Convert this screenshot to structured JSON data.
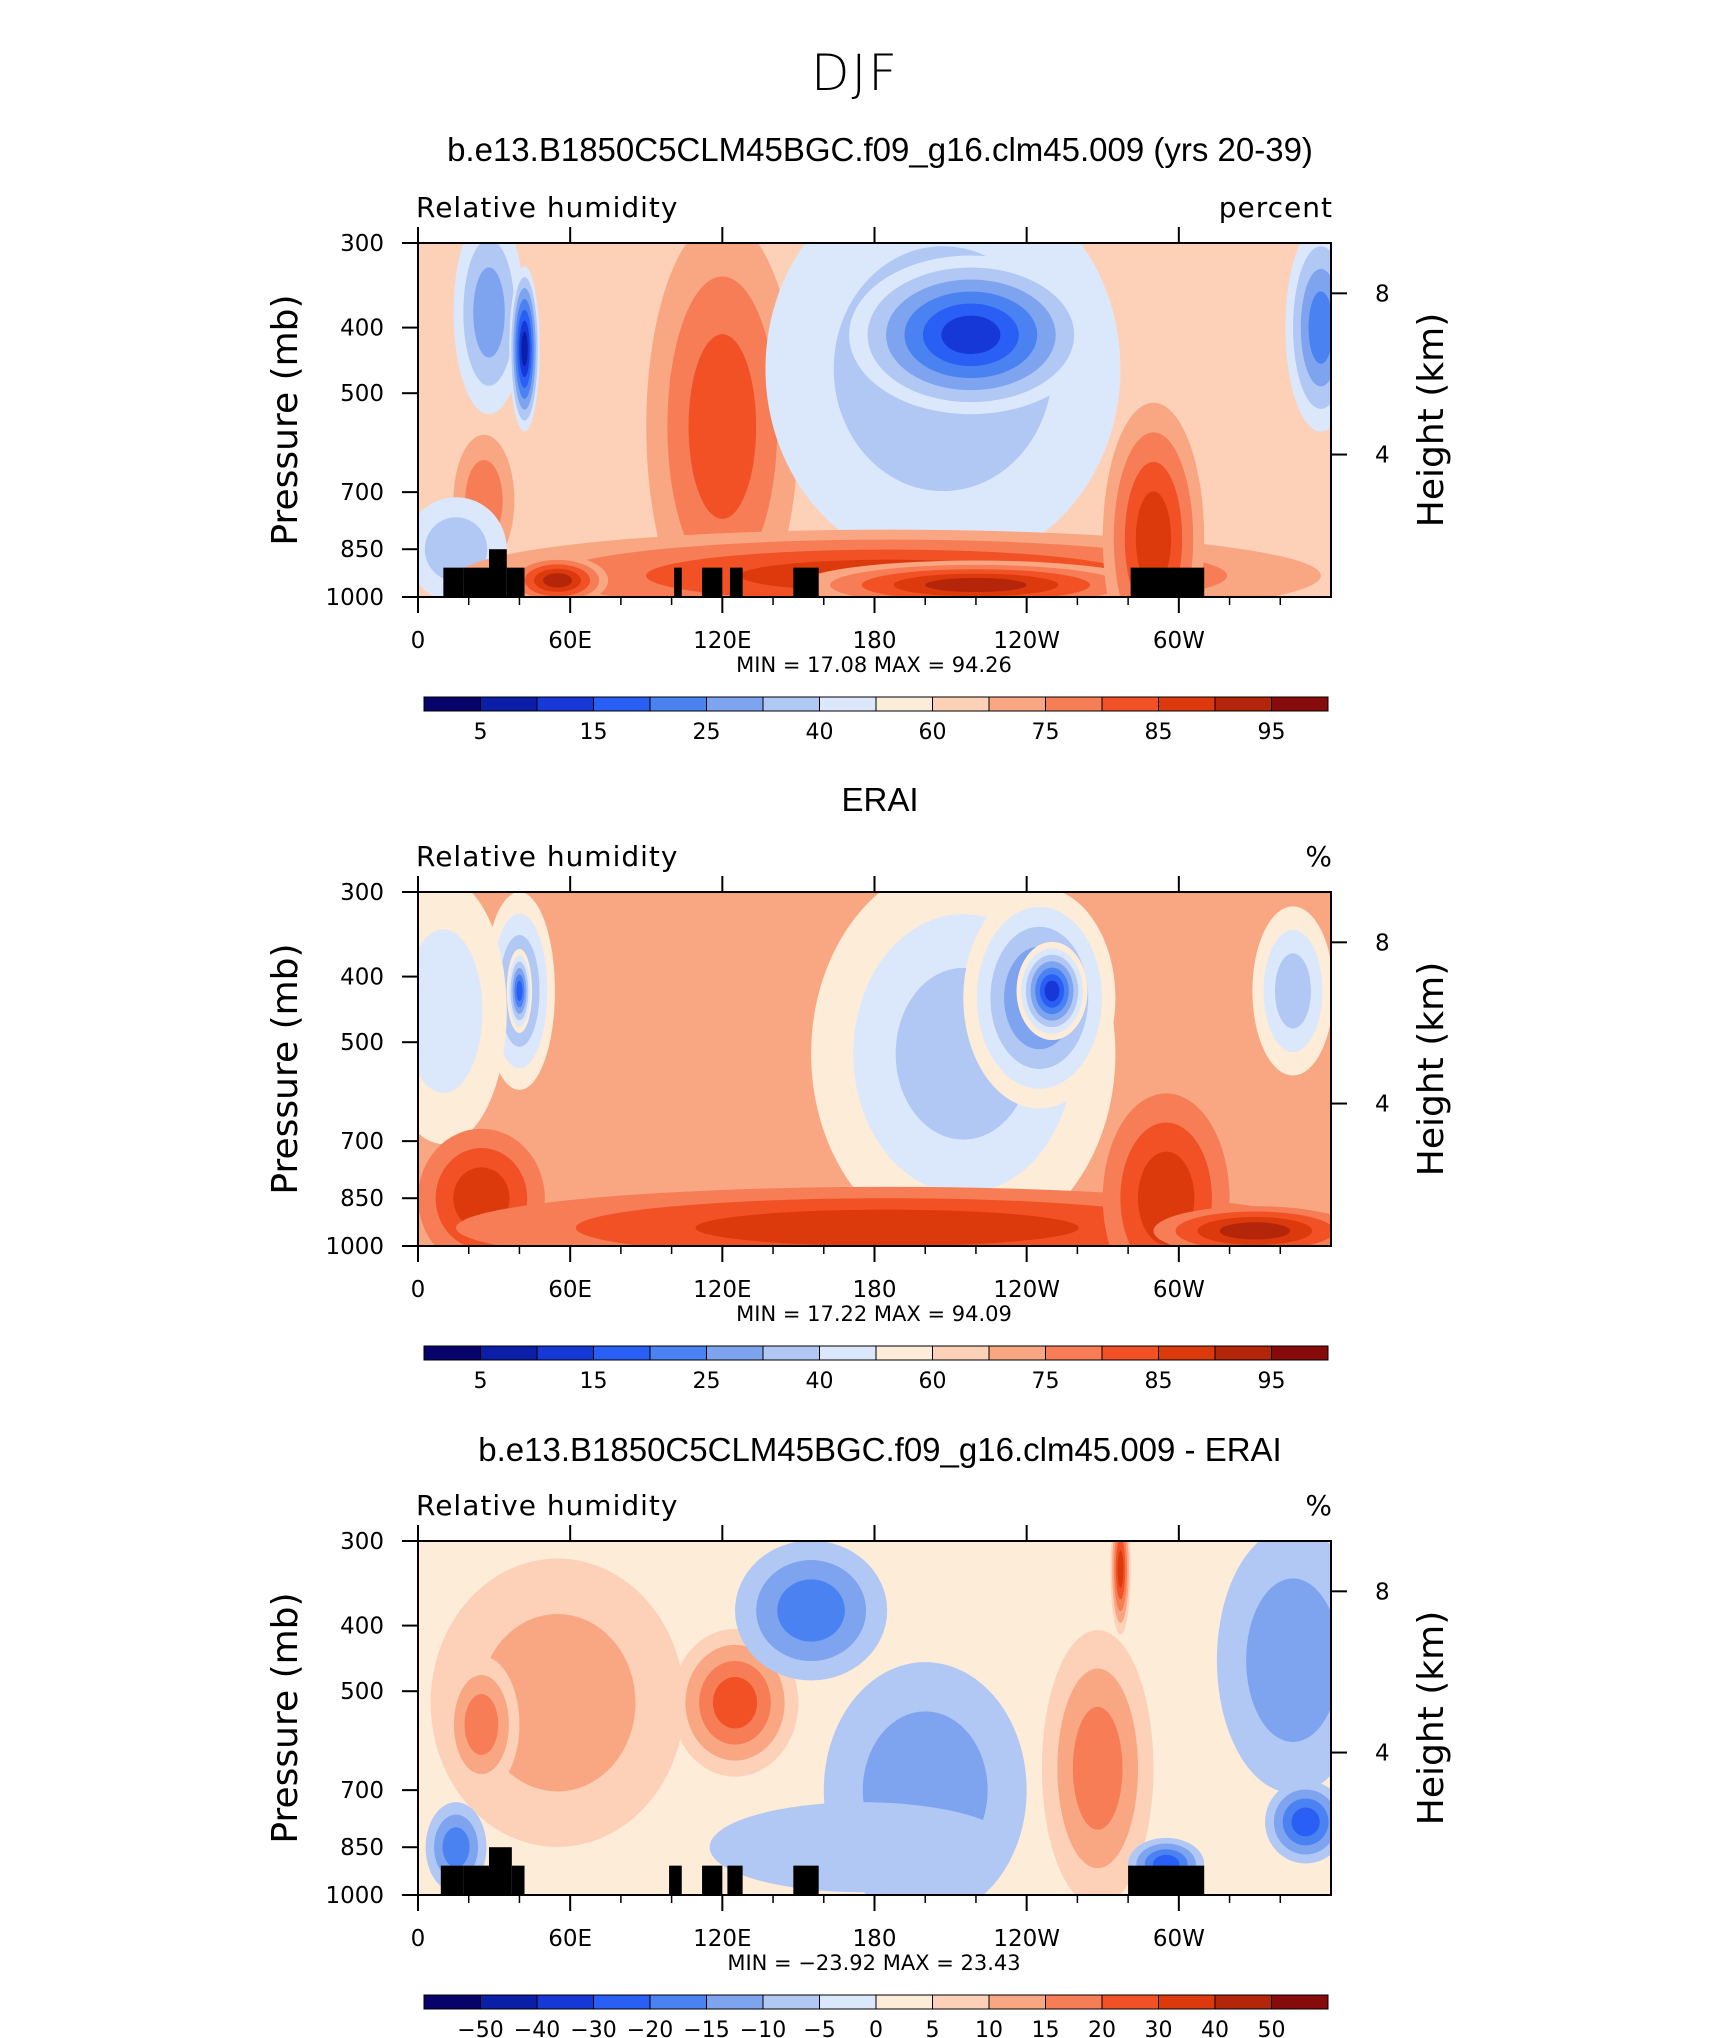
{
  "figure": {
    "title": "DJF"
  },
  "colorbars": {
    "abs_levels": [
      "5",
      "15",
      "25",
      "40",
      "60",
      "75",
      "85",
      "95"
    ],
    "diff_levels": [
      "-50",
      "-40",
      "-30",
      "-20",
      "-15",
      "-10",
      "-5",
      "0",
      "5",
      "10",
      "15",
      "20",
      "30",
      "40",
      "50"
    ],
    "colors": [
      "#08036b",
      "#0b1ea8",
      "#1538d6",
      "#2a5ff5",
      "#4b82f2",
      "#7ea4f0",
      "#b1c8f5",
      "#dbe7fb",
      "#fdecd8",
      "#fcd1b8",
      "#f9a683",
      "#f67d55",
      "#f15124",
      "#dc3a0c",
      "#b5250a",
      "#870b0b"
    ]
  },
  "chart_data": [
    {
      "type": "heatmap",
      "title": "b.e13.B1850C5CLM45BGC.f09_g16.clm45.009 (yrs 20-39)",
      "subtitle": "Relative humidity",
      "units": "percent",
      "ylabel": "Pressure (mb)",
      "y2label": "Height (km)",
      "x_ticks": [
        "0",
        "60E",
        "120E",
        "180",
        "120W",
        "60W"
      ],
      "y_ticks": [
        "300",
        "400",
        "500",
        "700",
        "850",
        "1000"
      ],
      "y2_ticks": [
        "8",
        "4"
      ],
      "stats": {
        "min_label": "MIN =",
        "min": "17.08",
        "max_label": "MAX =",
        "max": "94.26"
      },
      "levels": [
        5,
        10,
        15,
        20,
        25,
        30,
        40,
        50,
        60,
        70,
        75,
        80,
        85,
        90,
        95
      ],
      "bg_level": 60,
      "blobs": [
        {
          "lon": 28,
          "p": 380,
          "rlon": 14,
          "rp": 130,
          "value": 30
        },
        {
          "lon": 42,
          "p": 430,
          "rlon": 6,
          "rp": 120,
          "value": 10
        },
        {
          "lon": 26,
          "p": 720,
          "rlon": 12,
          "rp": 160,
          "value": 75
        },
        {
          "lon": 15,
          "p": 850,
          "rlon": 20,
          "rp": 150,
          "value": 40
        },
        {
          "lon": 120,
          "p": 560,
          "rlon": 30,
          "rp": 380,
          "value": 82
        },
        {
          "lon": 207,
          "p": 460,
          "rlon": 70,
          "rp": 300,
          "value": 35
        },
        {
          "lon": 218,
          "p": 410,
          "rlon": 48,
          "rp": 110,
          "value": 15
        },
        {
          "lon": 356,
          "p": 400,
          "rlon": 14,
          "rp": 140,
          "value": 25
        },
        {
          "lon": 186,
          "p": 930,
          "rlon": 170,
          "rp": 150,
          "value": 88
        },
        {
          "lon": 220,
          "p": 960,
          "rlon": 70,
          "rp": 80,
          "value": 92
        },
        {
          "lon": 290,
          "p": 820,
          "rlon": 20,
          "rp": 380,
          "value": 86
        },
        {
          "lon": 55,
          "p": 945,
          "rlon": 20,
          "rp": 80,
          "value": 90
        }
      ],
      "topography": [
        [
          10,
          18,
          905
        ],
        [
          18,
          28,
          905
        ],
        [
          28,
          35,
          850
        ],
        [
          35,
          42,
          905
        ],
        [
          101,
          104,
          905
        ],
        [
          112,
          120,
          905
        ],
        [
          123,
          128,
          905
        ],
        [
          148,
          158,
          905
        ],
        [
          281,
          310,
          905
        ]
      ]
    },
    {
      "type": "heatmap",
      "title": "ERAI",
      "subtitle": "Relative humidity",
      "units": "%",
      "ylabel": "Pressure (mb)",
      "y2label": "Height (km)",
      "x_ticks": [
        "0",
        "60E",
        "120E",
        "180",
        "120W",
        "60W"
      ],
      "y_ticks": [
        "300",
        "400",
        "500",
        "700",
        "850",
        "1000"
      ],
      "y2_ticks": [
        "8",
        "4"
      ],
      "stats": {
        "min_label": "MIN =",
        "min": "17.22",
        "max_label": "MAX =",
        "max": "94.09"
      },
      "levels": [
        5,
        10,
        15,
        20,
        25,
        30,
        40,
        50,
        60,
        70,
        75,
        80,
        85,
        90,
        95
      ],
      "bg_level": 70,
      "blobs": [
        {
          "lon": 40,
          "p": 420,
          "rlon": 14,
          "rp": 140,
          "value": 30
        },
        {
          "lon": 40,
          "p": 420,
          "rlon": 5,
          "rp": 60,
          "value": 20
        },
        {
          "lon": 10,
          "p": 450,
          "rlon": 25,
          "rp": 200,
          "value": 50
        },
        {
          "lon": 25,
          "p": 850,
          "rlon": 25,
          "rp": 200,
          "value": 85
        },
        {
          "lon": 215,
          "p": 520,
          "rlon": 60,
          "rp": 330,
          "value": 40
        },
        {
          "lon": 245,
          "p": 430,
          "rlon": 30,
          "rp": 160,
          "value": 25
        },
        {
          "lon": 250,
          "p": 420,
          "rlon": 14,
          "rp": 70,
          "value": 15
        },
        {
          "lon": 345,
          "p": 420,
          "rlon": 16,
          "rp": 120,
          "value": 35
        },
        {
          "lon": 185,
          "p": 940,
          "rlon": 170,
          "rp": 140,
          "value": 88
        },
        {
          "lon": 295,
          "p": 850,
          "rlon": 25,
          "rp": 300,
          "value": 88
        },
        {
          "lon": 330,
          "p": 950,
          "rlon": 40,
          "rp": 80,
          "value": 90
        }
      ],
      "topography": []
    },
    {
      "type": "heatmap",
      "title": "b.e13.B1850C5CLM45BGC.f09_g16.clm45.009 - ERAI",
      "subtitle": "Relative humidity",
      "units": "%",
      "ylabel": "Pressure (mb)",
      "y2label": "Height (km)",
      "x_ticks": [
        "0",
        "60E",
        "120E",
        "180",
        "120W",
        "60W"
      ],
      "y_ticks": [
        "300",
        "400",
        "500",
        "700",
        "850",
        "1000"
      ],
      "y2_ticks": [
        "8",
        "4"
      ],
      "stats": {
        "min_label": "MIN =",
        "min": "−23.92",
        "max_label": "MAX =",
        "max": "23.43"
      },
      "levels": [
        -50,
        -40,
        -30,
        -20,
        -15,
        -10,
        -5,
        0,
        5,
        10,
        15,
        20,
        30,
        40,
        50
      ],
      "bg_level": 0,
      "blobs": [
        {
          "lon": 55,
          "p": 520,
          "rlon": 50,
          "rp": 250,
          "value": 10
        },
        {
          "lon": 25,
          "p": 560,
          "rlon": 15,
          "rp": 130,
          "value": 15
        },
        {
          "lon": 125,
          "p": 520,
          "rlon": 25,
          "rp": 130,
          "value": 20
        },
        {
          "lon": 155,
          "p": 380,
          "rlon": 30,
          "rp": 90,
          "value": -15
        },
        {
          "lon": 200,
          "p": 700,
          "rlon": 40,
          "rp": 300,
          "value": -10
        },
        {
          "lon": 175,
          "p": 850,
          "rlon": 60,
          "rp": 130,
          "value": -5
        },
        {
          "lon": 268,
          "p": 650,
          "rlon": 22,
          "rp": 300,
          "value": 15
        },
        {
          "lon": 277,
          "p": 330,
          "rlon": 4,
          "rp": 90,
          "value": 30
        },
        {
          "lon": 345,
          "p": 450,
          "rlon": 30,
          "rp": 200,
          "value": -10
        },
        {
          "lon": 350,
          "p": 780,
          "rlon": 16,
          "rp": 110,
          "value": -20
        },
        {
          "lon": 15,
          "p": 850,
          "rlon": 12,
          "rp": 130,
          "value": -15
        },
        {
          "lon": 295,
          "p": 900,
          "rlon": 15,
          "rp": 80,
          "value": -20
        }
      ],
      "topography": [
        [
          9,
          18,
          905
        ],
        [
          18,
          28,
          905
        ],
        [
          28,
          37,
          850
        ],
        [
          37,
          42,
          905
        ],
        [
          99,
          104,
          905
        ],
        [
          112,
          120,
          905
        ],
        [
          122,
          128,
          905
        ],
        [
          148,
          158,
          905
        ],
        [
          280,
          310,
          905
        ]
      ]
    }
  ]
}
